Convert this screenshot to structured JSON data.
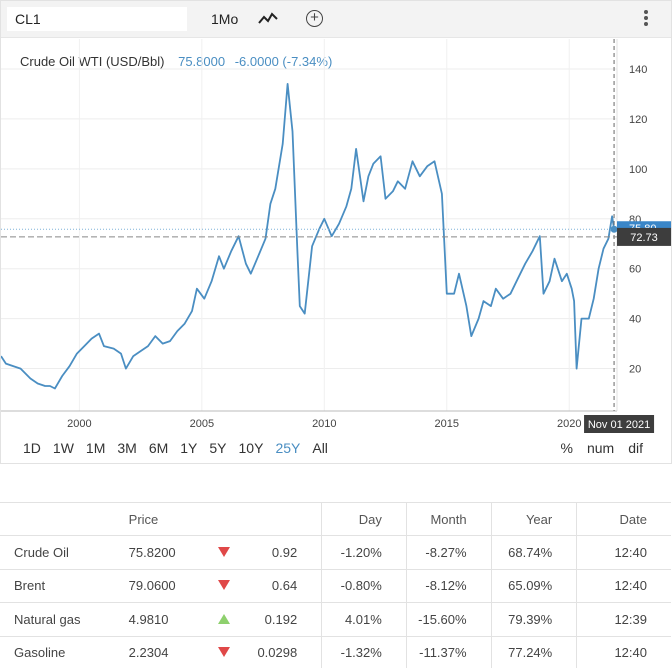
{
  "toolbar": {
    "symbol": "CL1",
    "interval": "1Mo",
    "line_type_icon": "line-chart-icon",
    "add_icon": "plus-circle-icon",
    "menu_icon": "vertical-dots-icon"
  },
  "legend": {
    "name": "Crude Oil WTI (USD/Bbl)",
    "value": "75.8000",
    "change": "-6.0000 (-7.34%)"
  },
  "colors": {
    "line": "#4a8ec2",
    "crosshair_label": "#3d3d3d",
    "last_label": "#3a86c8"
  },
  "ranges": {
    "items": [
      "1D",
      "1W",
      "1M",
      "3M",
      "6M",
      "1Y",
      "5Y",
      "10Y",
      "25Y",
      "All"
    ],
    "active": "25Y"
  },
  "modes": [
    "%",
    "num",
    "dif"
  ],
  "chart_data": {
    "type": "line",
    "title": "Crude Oil WTI (USD/Bbl)",
    "xlim": [
      1996.8,
      2021.95
    ],
    "ylim": [
      3,
      152
    ],
    "x_ticks": [
      2000,
      2005,
      2010,
      2015,
      2020
    ],
    "y_ticks": [
      20,
      40,
      60,
      80,
      100,
      120,
      140
    ],
    "grid": true,
    "last_value_label": "75.80",
    "crosshair": {
      "x_label": "Nov 01 2021",
      "y_label": "72.73",
      "x": 2021.83,
      "y": 72.73
    },
    "series": [
      {
        "name": "Crude Oil WTI",
        "x": [
          1996.8,
          1997.0,
          1997.3,
          1997.6,
          1998.0,
          1998.3,
          1998.6,
          1998.8,
          1999.0,
          1999.3,
          1999.6,
          1999.9,
          2000.2,
          2000.5,
          2000.8,
          2001.0,
          2001.4,
          2001.7,
          2001.9,
          2002.2,
          2002.5,
          2002.8,
          2003.1,
          2003.4,
          2003.7,
          2004.0,
          2004.3,
          2004.6,
          2004.8,
          2005.1,
          2005.4,
          2005.7,
          2005.9,
          2006.2,
          2006.5,
          2006.8,
          2007.0,
          2007.3,
          2007.6,
          2007.8,
          2008.0,
          2008.3,
          2008.5,
          2008.7,
          2008.9,
          2009.0,
          2009.2,
          2009.5,
          2009.8,
          2010.0,
          2010.3,
          2010.6,
          2010.9,
          2011.1,
          2011.3,
          2011.6,
          2011.8,
          2012.0,
          2012.3,
          2012.5,
          2012.8,
          2013.0,
          2013.3,
          2013.6,
          2013.9,
          2014.2,
          2014.5,
          2014.8,
          2015.0,
          2015.3,
          2015.5,
          2015.8,
          2016.0,
          2016.3,
          2016.5,
          2016.8,
          2017.0,
          2017.3,
          2017.6,
          2017.9,
          2018.2,
          2018.5,
          2018.8,
          2018.95,
          2019.2,
          2019.4,
          2019.7,
          2019.9,
          2020.1,
          2020.2,
          2020.3,
          2020.5,
          2020.8,
          2021.0,
          2021.2,
          2021.4,
          2021.6,
          2021.75,
          2021.83
        ],
        "y": [
          25,
          22,
          21,
          20,
          16,
          14,
          13,
          13,
          12,
          17,
          21,
          26,
          29,
          32,
          34,
          29,
          28,
          26,
          20,
          25,
          27,
          29,
          33,
          30,
          31,
          35,
          38,
          43,
          52,
          48,
          55,
          65,
          60,
          67,
          73,
          62,
          58,
          65,
          72,
          86,
          92,
          110,
          134,
          115,
          67,
          45,
          42,
          69,
          76,
          80,
          73,
          78,
          85,
          92,
          108,
          87,
          97,
          102,
          105,
          88,
          91,
          95,
          92,
          103,
          97,
          101,
          103,
          90,
          50,
          50,
          58,
          45,
          33,
          40,
          47,
          45,
          52,
          48,
          50,
          56,
          62,
          67,
          73,
          50,
          55,
          64,
          55,
          58,
          52,
          47,
          20,
          40,
          40,
          48,
          60,
          68,
          72,
          81,
          75.8
        ]
      }
    ]
  },
  "quotes": {
    "headers": [
      "",
      "Price",
      "",
      "",
      "Day",
      "Month",
      "Year",
      "Date"
    ],
    "rows": [
      {
        "name": "Crude Oil",
        "price": "75.8200",
        "dir": "down",
        "change": "0.92",
        "day": "-1.20%",
        "month": "-8.27%",
        "year": "68.74%",
        "date": "12:40"
      },
      {
        "name": "Brent",
        "price": "79.0600",
        "dir": "down",
        "change": "0.64",
        "day": "-0.80%",
        "month": "-8.12%",
        "year": "65.09%",
        "date": "12:40"
      },
      {
        "name": "Natural gas",
        "price": "4.9810",
        "dir": "up",
        "change": "0.192",
        "day": "4.01%",
        "month": "-15.60%",
        "year": "79.39%",
        "date": "12:39"
      },
      {
        "name": "Gasoline",
        "price": "2.2304",
        "dir": "down",
        "change": "0.0298",
        "day": "-1.32%",
        "month": "-11.37%",
        "year": "77.24%",
        "date": "12:40"
      }
    ]
  }
}
